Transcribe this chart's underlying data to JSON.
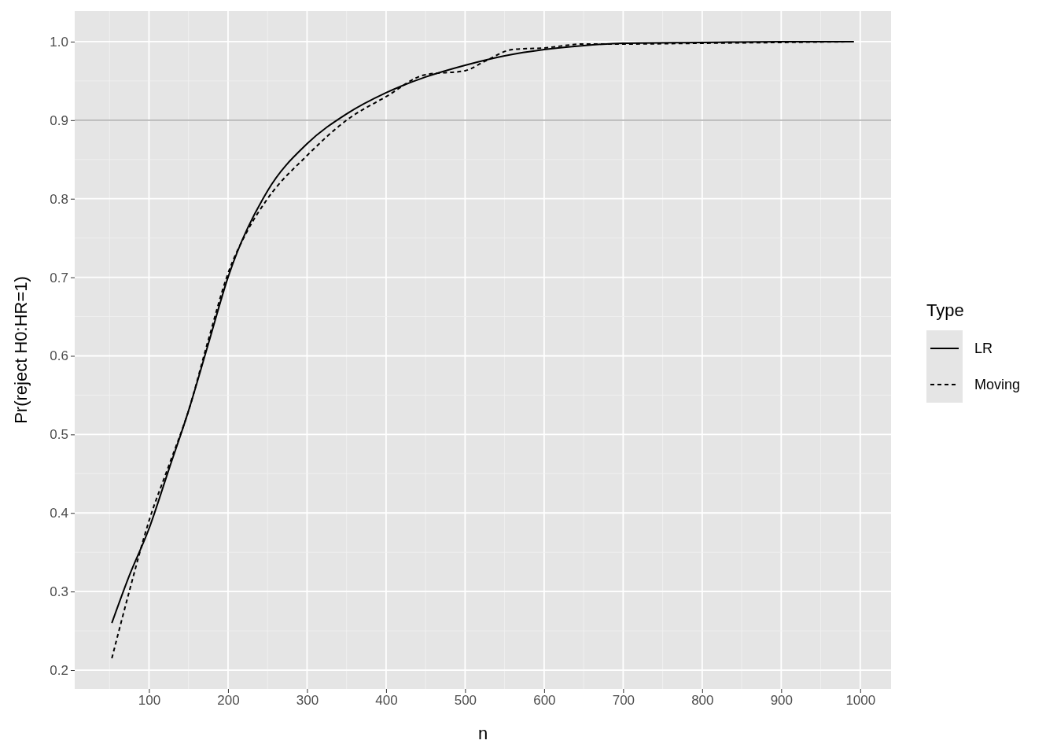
{
  "chart_data": {
    "type": "line",
    "xlabel": "n",
    "ylabel": "Pr(reject H0:HR=1)",
    "legend_title": "Type",
    "xlim": [
      6,
      1039
    ],
    "xticks": [
      100,
      200,
      300,
      400,
      500,
      600,
      700,
      800,
      900,
      1000
    ],
    "ylim": [
      0.176,
      1.039
    ],
    "yticks": [
      0.2,
      0.3,
      0.4,
      0.5,
      0.6,
      0.7,
      0.8,
      0.9,
      {
        "value": 1,
        "label": "1.0"
      }
    ],
    "grid": true,
    "legend": "right",
    "ref_lines": [
      {
        "axis": "y",
        "value": 0.9,
        "color": "#b3b3b3"
      }
    ],
    "series": [
      {
        "name": "LR",
        "color": "#000000",
        "line_style": "solid",
        "x": [
          53,
          75,
          100,
          125,
          150,
          175,
          200,
          250,
          300,
          350,
          400,
          450,
          500,
          550,
          600,
          650,
          700,
          800,
          900,
          992
        ],
        "values": [
          0.26,
          0.32,
          0.38,
          0.455,
          0.53,
          0.615,
          0.7,
          0.81,
          0.87,
          0.908,
          0.935,
          0.955,
          0.97,
          0.982,
          0.99,
          0.995,
          0.998,
          0.999,
          1.0,
          1.0
        ]
      },
      {
        "name": "Moving",
        "color": "#000000",
        "line_style": "dashed",
        "x": [
          53,
          75,
          100,
          125,
          150,
          175,
          200,
          225,
          250,
          300,
          350,
          400,
          450,
          500,
          525,
          560,
          600,
          650,
          700,
          800,
          900,
          992
        ],
        "values": [
          0.215,
          0.3,
          0.39,
          0.46,
          0.53,
          0.62,
          0.705,
          0.76,
          0.8,
          0.855,
          0.9,
          0.93,
          0.958,
          0.963,
          0.975,
          0.99,
          0.992,
          0.997,
          0.997,
          0.998,
          0.999,
          1.0
        ]
      }
    ]
  }
}
